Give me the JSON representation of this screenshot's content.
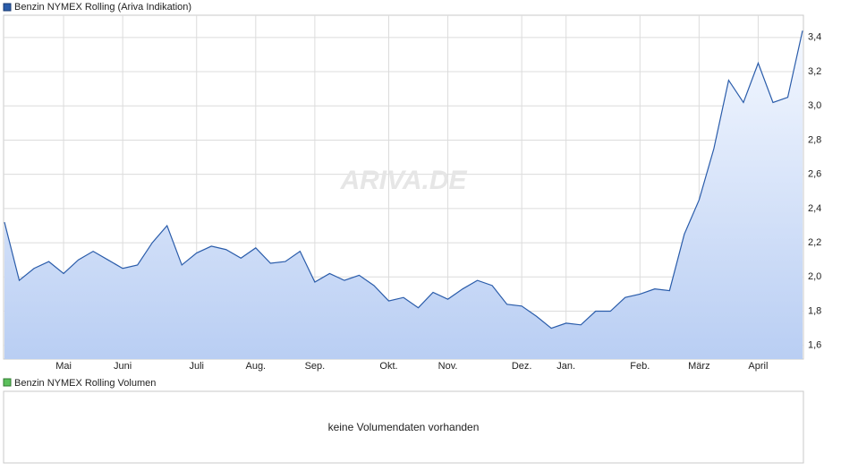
{
  "chart_data": {
    "type": "line",
    "legend": "Benzin NYMEX Rolling (Ariva Indikation)",
    "watermark": "ARIVA.DE",
    "categories": [
      null,
      null,
      null,
      null,
      "Mai",
      null,
      null,
      null,
      "Juni",
      null,
      null,
      null,
      null,
      "Juli",
      null,
      null,
      null,
      "Aug.",
      null,
      null,
      null,
      "Sep.",
      null,
      null,
      null,
      null,
      "Okt.",
      null,
      null,
      null,
      "Nov.",
      null,
      null,
      null,
      null,
      "Dez.",
      null,
      null,
      "Jan.",
      null,
      null,
      null,
      null,
      "Feb.",
      null,
      null,
      null,
      "März",
      null,
      null,
      null,
      "April",
      null,
      null,
      null
    ],
    "series": [
      {
        "name": "Benzin NYMEX Rolling",
        "color": "#2a5caa",
        "values": [
          2.32,
          1.98,
          2.05,
          2.09,
          2.02,
          2.1,
          2.15,
          2.1,
          2.05,
          2.07,
          2.2,
          2.3,
          2.07,
          2.14,
          2.18,
          2.16,
          2.11,
          2.17,
          2.08,
          2.09,
          2.15,
          1.97,
          2.02,
          1.98,
          2.01,
          1.95,
          1.86,
          1.88,
          1.82,
          1.91,
          1.87,
          1.93,
          1.98,
          1.95,
          1.84,
          1.83,
          1.77,
          1.7,
          1.73,
          1.72,
          1.8,
          1.8,
          1.88,
          1.9,
          1.93,
          1.92,
          2.25,
          2.45,
          2.75,
          3.15,
          3.02,
          3.25,
          3.02,
          3.05,
          3.44
        ]
      }
    ],
    "ylim": [
      1.52,
      3.53
    ],
    "yticks": [
      {
        "value": 1.6,
        "label": "1,6"
      },
      {
        "value": 1.8,
        "label": "1,8"
      },
      {
        "value": 2.0,
        "label": "2,0"
      },
      {
        "value": 2.2,
        "label": "2,2"
      },
      {
        "value": 2.4,
        "label": "2,4"
      },
      {
        "value": 2.6,
        "label": "2,6"
      },
      {
        "value": 2.8,
        "label": "2,8"
      },
      {
        "value": 3.0,
        "label": "3,0"
      },
      {
        "value": 3.2,
        "label": "3,2"
      },
      {
        "value": 3.4,
        "label": "3,4"
      }
    ],
    "grid": true
  },
  "volume_panel": {
    "legend": "Benzin NYMEX Rolling Volumen",
    "message": "keine Volumendaten vorhanden"
  }
}
